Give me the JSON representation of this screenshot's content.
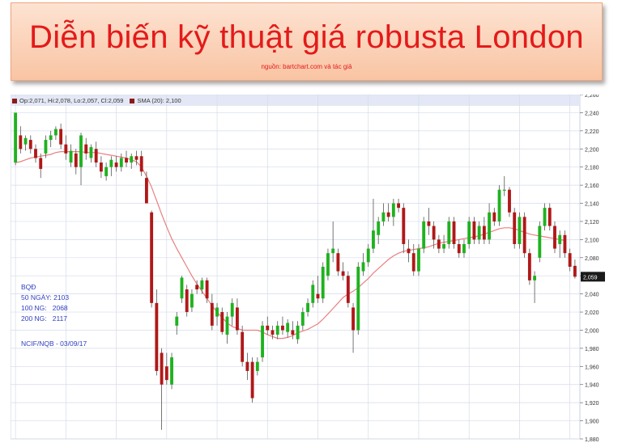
{
  "banner": {
    "title": "Diễn biến kỹ thuật giá robusta London",
    "source": "nguồn: bartchart.com và tác giả"
  },
  "legend": {
    "ohlc": "Op:2,071, Hi:2,078, Lo:2,057, Cl:2,059",
    "sma": "SMA (20): 2,100"
  },
  "notes": {
    "line1": "BQĐ",
    "line2": "50 NGÀY: 2103",
    "line3": "100 NG:   2068",
    "line4": "200 NG:   2117",
    "line5": "NCIF/NQB - 03/09/17"
  },
  "colors": {
    "up": "#1fb21f",
    "down": "#b01818",
    "sma": "#e88080",
    "grid": "#d4dbe8",
    "price_tag": "#1a1a1a"
  },
  "chart_data": {
    "type": "candlestick",
    "ylim": [
      1880,
      2260
    ],
    "yticks": [
      "1,880",
      "1,900",
      "1,920",
      "1,940",
      "1,960",
      "1,980",
      "2,000",
      "2,020",
      "2,040",
      "2,060",
      "2,080",
      "2,100",
      "2,120",
      "2,140",
      "2,160",
      "2,180",
      "2,200",
      "2,220",
      "2,240",
      "2,260"
    ],
    "last_price_label": "2,059",
    "candles": [
      [
        2185,
        2240,
        2182,
        2240
      ],
      [
        2215,
        2225,
        2195,
        2200
      ],
      [
        2205,
        2215,
        2198,
        2212
      ],
      [
        2210,
        2215,
        2195,
        2200
      ],
      [
        2200,
        2205,
        2185,
        2190
      ],
      [
        2190,
        2195,
        2168,
        2178
      ],
      [
        2195,
        2215,
        2190,
        2210
      ],
      [
        2210,
        2220,
        2202,
        2215
      ],
      [
        2215,
        2225,
        2210,
        2222
      ],
      [
        2222,
        2228,
        2200,
        2205
      ],
      [
        2205,
        2215,
        2188,
        2195
      ],
      [
        2185,
        2205,
        2180,
        2198
      ],
      [
        2195,
        2200,
        2172,
        2180
      ],
      [
        2180,
        2218,
        2160,
        2215
      ],
      [
        2205,
        2212,
        2188,
        2195
      ],
      [
        2190,
        2205,
        2185,
        2202
      ],
      [
        2200,
        2208,
        2180,
        2185
      ],
      [
        2185,
        2192,
        2168,
        2175
      ],
      [
        2170,
        2185,
        2165,
        2180
      ],
      [
        2180,
        2192,
        2170,
        2188
      ],
      [
        2185,
        2192,
        2175,
        2180
      ],
      [
        2180,
        2195,
        2175,
        2190
      ],
      [
        2190,
        2198,
        2180,
        2185
      ],
      [
        2185,
        2195,
        2178,
        2192
      ],
      [
        2192,
        2198,
        2182,
        2188
      ],
      [
        2192,
        2198,
        2170,
        2175
      ],
      [
        2168,
        2175,
        2140,
        2140
      ],
      [
        2130,
        2132,
        2025,
        2030
      ],
      [
        2030,
        2045,
        1950,
        1955
      ],
      [
        1975,
        1980,
        1890,
        1940
      ],
      [
        1960,
        1975,
        1940,
        1945
      ],
      [
        1940,
        1975,
        1935,
        1970
      ],
      [
        2005,
        2020,
        1995,
        2015
      ],
      [
        2035,
        2060,
        2030,
        2058
      ],
      [
        2045,
        2050,
        2015,
        2020
      ],
      [
        2025,
        2045,
        2020,
        2040
      ],
      [
        2050,
        2055,
        2040,
        2045
      ],
      [
        2045,
        2058,
        2040,
        2055
      ],
      [
        2055,
        2058,
        2030,
        2035
      ],
      [
        2030,
        2040,
        2000,
        2005
      ],
      [
        2015,
        2030,
        2005,
        2025
      ],
      [
        2020,
        2025,
        1995,
        1998
      ],
      [
        1995,
        2020,
        1985,
        2015
      ],
      [
        2015,
        2035,
        2005,
        2030
      ],
      [
        2025,
        2035,
        1995,
        2000
      ],
      [
        1998,
        2005,
        1960,
        1965
      ],
      [
        1965,
        1975,
        1945,
        1955
      ],
      [
        1965,
        1970,
        1920,
        1925
      ],
      [
        1955,
        1970,
        1950,
        1965
      ],
      [
        1970,
        2010,
        1965,
        2005
      ],
      [
        2005,
        2015,
        1995,
        2000
      ],
      [
        2000,
        2005,
        1990,
        1995
      ],
      [
        1995,
        2010,
        1990,
        2005
      ],
      [
        2005,
        2015,
        1995,
        2000
      ],
      [
        1998,
        2012,
        1992,
        2008
      ],
      [
        2000,
        2010,
        1990,
        1995
      ],
      [
        1990,
        2010,
        1985,
        2005
      ],
      [
        2005,
        2025,
        2000,
        2020
      ],
      [
        2020,
        2035,
        2015,
        2030
      ],
      [
        2030,
        2055,
        2025,
        2050
      ],
      [
        2040,
        2060,
        2030,
        2035
      ],
      [
        2035,
        2075,
        2030,
        2070
      ],
      [
        2060,
        2090,
        2055,
        2085
      ],
      [
        2085,
        2120,
        2075,
        2090
      ],
      [
        2085,
        2090,
        2060,
        2065
      ],
      [
        2065,
        2075,
        2055,
        2060
      ],
      [
        2060,
        2065,
        2025,
        2030
      ],
      [
        2025,
        2030,
        1975,
        2000
      ],
      [
        2000,
        2075,
        1995,
        2070
      ],
      [
        2065,
        2085,
        2060,
        2075
      ],
      [
        2075,
        2095,
        2070,
        2090
      ],
      [
        2090,
        2145,
        2085,
        2110
      ],
      [
        2105,
        2125,
        2095,
        2120
      ],
      [
        2120,
        2140,
        2115,
        2130
      ],
      [
        2130,
        2140,
        2120,
        2125
      ],
      [
        2125,
        2145,
        2115,
        2140
      ],
      [
        2140,
        2145,
        2130,
        2135
      ],
      [
        2135,
        2140,
        2085,
        2095
      ],
      [
        2090,
        2100,
        2075,
        2085
      ],
      [
        2085,
        2095,
        2060,
        2065
      ],
      [
        2065,
        2095,
        2060,
        2090
      ],
      [
        2090,
        2125,
        2085,
        2120
      ],
      [
        2120,
        2135,
        2105,
        2115
      ],
      [
        2115,
        2120,
        2090,
        2100
      ],
      [
        2100,
        2105,
        2085,
        2090
      ],
      [
        2090,
        2105,
        2085,
        2095
      ],
      [
        2095,
        2125,
        2090,
        2120
      ],
      [
        2120,
        2125,
        2090,
        2095
      ],
      [
        2095,
        2100,
        2080,
        2085
      ],
      [
        2085,
        2100,
        2080,
        2095
      ],
      [
        2095,
        2125,
        2090,
        2120
      ],
      [
        2120,
        2125,
        2095,
        2100
      ],
      [
        2100,
        2120,
        2095,
        2115
      ],
      [
        2115,
        2125,
        2095,
        2100
      ],
      [
        2100,
        2140,
        2095,
        2130
      ],
      [
        2130,
        2135,
        2115,
        2120
      ],
      [
        2120,
        2160,
        2115,
        2155
      ],
      [
        2155,
        2170,
        2148,
        2155
      ],
      [
        2155,
        2158,
        2125,
        2130
      ],
      [
        2130,
        2135,
        2090,
        2095
      ],
      [
        2095,
        2130,
        2090,
        2125
      ],
      [
        2125,
        2130,
        2080,
        2085
      ],
      [
        2085,
        2090,
        2050,
        2055
      ],
      [
        2055,
        2065,
        2030,
        2060
      ],
      [
        2080,
        2120,
        2075,
        2115
      ],
      [
        2115,
        2140,
        2110,
        2135
      ],
      [
        2135,
        2140,
        2110,
        2115
      ],
      [
        2115,
        2120,
        2085,
        2090
      ],
      [
        2095,
        2110,
        2080,
        2105
      ],
      [
        2105,
        2110,
        2080,
        2085
      ],
      [
        2085,
        2090,
        2065,
        2070
      ],
      [
        2071,
        2078,
        2057,
        2059
      ]
    ],
    "sma20": [
      2185,
      2186,
      2188,
      2190,
      2191,
      2192,
      2193,
      2194,
      2196,
      2197,
      2197,
      2197,
      2197,
      2197,
      2196,
      2196,
      2196,
      2195,
      2194,
      2193,
      2192,
      2191,
      2190,
      2188,
      2186,
      2180,
      2170,
      2158,
      2143,
      2128,
      2114,
      2101,
      2090,
      2080,
      2070,
      2060,
      2051,
      2043,
      2035,
      2027,
      2020,
      2014,
      2008,
      2004,
      2002,
      2000,
      2000,
      2000,
      2000,
      1998,
      1995,
      1993,
      1991,
      1991,
      1992,
      1994,
      1997,
      1999,
      2001,
      2004,
      2007,
      2012,
      2018,
      2024,
      2030,
      2036,
      2040,
      2043,
      2047,
      2052,
      2057,
      2063,
      2068,
      2073,
      2078,
      2082,
      2085,
      2087,
      2088,
      2089,
      2090,
      2091,
      2092,
      2094,
      2096,
      2097,
      2098,
      2099,
      2100,
      2101,
      2102,
      2103,
      2104,
      2106,
      2108,
      2110,
      2112,
      2113,
      2113,
      2112,
      2110,
      2108,
      2106,
      2105,
      2104,
      2103,
      2102,
      2101,
      2100,
      2099
    ]
  }
}
